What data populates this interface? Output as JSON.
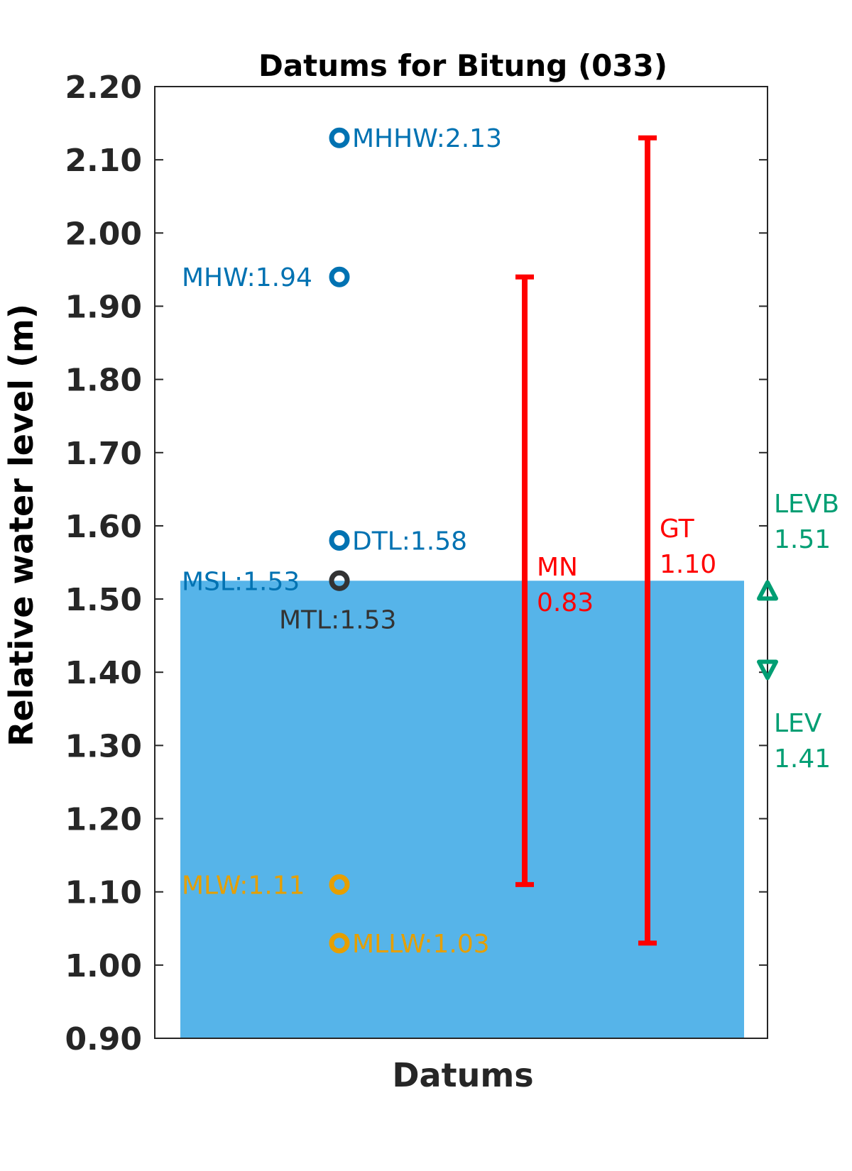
{
  "chart_data": {
    "type": "bar",
    "title": "Datums for Bitung (033)",
    "xlabel": "Datums",
    "ylabel": "Relative water level (m)",
    "ylim": [
      0.9,
      2.2
    ],
    "yticks": [
      "0.90",
      "1.00",
      "1.10",
      "1.20",
      "1.30",
      "1.40",
      "1.50",
      "1.60",
      "1.70",
      "1.80",
      "1.90",
      "2.00",
      "2.10",
      "2.20"
    ],
    "grid": false,
    "bar": {
      "value": 1.525,
      "color": "#56b4e9"
    },
    "datums": [
      {
        "name": "MHHW",
        "label": "MHHW:2.13",
        "value": 2.13,
        "color": "#0072b2",
        "label_side": "right"
      },
      {
        "name": "MHW",
        "label": "MHW:1.94",
        "value": 1.94,
        "color": "#0072b2",
        "label_side": "left"
      },
      {
        "name": "DTL",
        "label": "DTL:1.58",
        "value": 1.58,
        "color": "#0072b2",
        "label_side": "right"
      },
      {
        "name": "MSL",
        "label": "MSL:1.53",
        "value": 1.525,
        "color": "#0072b2",
        "label_side": "left"
      },
      {
        "name": "MTL",
        "label": "MTL:1.53",
        "value": 1.525,
        "color": "#333333",
        "label_side": "below"
      },
      {
        "name": "MLW",
        "label": "MLW:1.11",
        "value": 1.11,
        "color": "#e69f00",
        "label_side": "left"
      },
      {
        "name": "MLLW",
        "label": "MLLW:1.03",
        "value": 1.03,
        "color": "#e69f00",
        "label_side": "right"
      }
    ],
    "ranges": [
      {
        "name": "MN",
        "label_line1": "MN",
        "label_line2": "0.83",
        "low": 1.11,
        "high": 1.94,
        "color": "#ff0000"
      },
      {
        "name": "GT",
        "label_line1": "GT",
        "label_line2": "1.10",
        "low": 1.03,
        "high": 2.13,
        "color": "#ff0000"
      }
    ],
    "extremes": [
      {
        "name": "LEVB",
        "label_line1": "LEVB",
        "label_line2": "1.51",
        "value": 1.51,
        "marker": "triangle-up",
        "color": "#009e73"
      },
      {
        "name": "LEV",
        "label_line1": "LEV",
        "label_line2": "1.41",
        "value": 1.405,
        "marker": "triangle-down",
        "color": "#009e73"
      }
    ]
  }
}
